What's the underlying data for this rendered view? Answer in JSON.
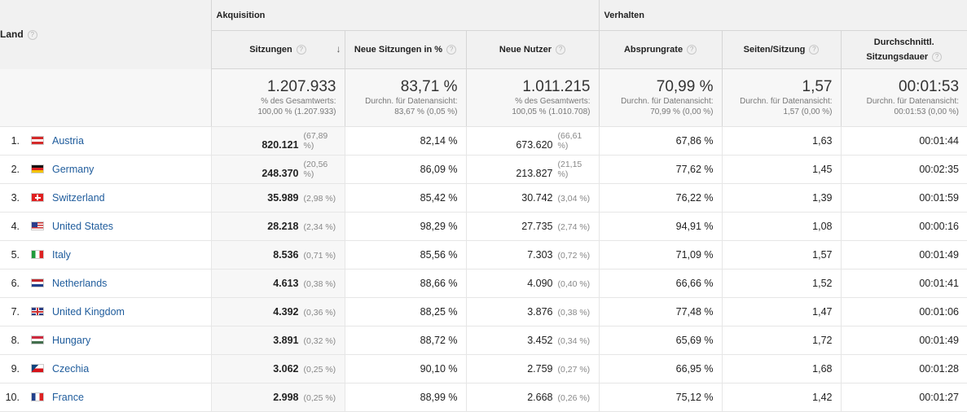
{
  "header": {
    "land": "Land",
    "group_acq": "Akquisition",
    "group_beh": "Verhalten",
    "cols": {
      "sitzungen": "Sitzungen",
      "neue_sitzungen": "Neue Sitzungen in %",
      "neue_nutzer": "Neue Nutzer",
      "absprungrate": "Absprungrate",
      "seiten": "Seiten/Sitzung",
      "dauer1": "Durchschnittl.",
      "dauer2": "Sitzungsdauer"
    },
    "help": "?",
    "sort_glyph": "↓"
  },
  "totals": {
    "sitzungen": {
      "big": "1.207.933",
      "sub1": "% des Gesamtwerts:",
      "sub2": "100,00 % (1.207.933)"
    },
    "neue_sitzungen": {
      "big": "83,71 %",
      "sub1": "Durchn. für Datenansicht:",
      "sub2": "83,67 % (0,05 %)"
    },
    "neue_nutzer": {
      "big": "1.011.215",
      "sub1": "% des Gesamtwerts:",
      "sub2": "100,05 % (1.010.708)"
    },
    "absprungrate": {
      "big": "70,99 %",
      "sub1": "Durchn. für Datenansicht:",
      "sub2": "70,99 % (0,00 %)"
    },
    "seiten": {
      "big": "1,57",
      "sub1": "Durchn. für Datenansicht:",
      "sub2": "1,57 (0,00 %)"
    },
    "dauer": {
      "big": "00:01:53",
      "sub1": "Durchn. für Datenansicht:",
      "sub2": "00:01:53 (0,00 %)"
    }
  },
  "rows": [
    {
      "n": "1.",
      "country": "Austria",
      "flag": "at",
      "sitz": "820.121",
      "sitz_pct": "(67,89 %)",
      "neu": "82,14 %",
      "nutzer": "673.620",
      "nutzer_pct": "(66,61 %)",
      "abs": "67,86 %",
      "seiten": "1,63",
      "dauer": "00:01:44"
    },
    {
      "n": "2.",
      "country": "Germany",
      "flag": "de",
      "sitz": "248.370",
      "sitz_pct": "(20,56 %)",
      "neu": "86,09 %",
      "nutzer": "213.827",
      "nutzer_pct": "(21,15 %)",
      "abs": "77,62 %",
      "seiten": "1,45",
      "dauer": "00:02:35"
    },
    {
      "n": "3.",
      "country": "Switzerland",
      "flag": "ch",
      "sitz": "35.989",
      "sitz_pct": "(2,98 %)",
      "neu": "85,42 %",
      "nutzer": "30.742",
      "nutzer_pct": "(3,04 %)",
      "abs": "76,22 %",
      "seiten": "1,39",
      "dauer": "00:01:59"
    },
    {
      "n": "4.",
      "country": "United States",
      "flag": "us",
      "sitz": "28.218",
      "sitz_pct": "(2,34 %)",
      "neu": "98,29 %",
      "nutzer": "27.735",
      "nutzer_pct": "(2,74 %)",
      "abs": "94,91 %",
      "seiten": "1,08",
      "dauer": "00:00:16"
    },
    {
      "n": "5.",
      "country": "Italy",
      "flag": "it",
      "sitz": "8.536",
      "sitz_pct": "(0,71 %)",
      "neu": "85,56 %",
      "nutzer": "7.303",
      "nutzer_pct": "(0,72 %)",
      "abs": "71,09 %",
      "seiten": "1,57",
      "dauer": "00:01:49"
    },
    {
      "n": "6.",
      "country": "Netherlands",
      "flag": "nl",
      "sitz": "4.613",
      "sitz_pct": "(0,38 %)",
      "neu": "88,66 %",
      "nutzer": "4.090",
      "nutzer_pct": "(0,40 %)",
      "abs": "66,66 %",
      "seiten": "1,52",
      "dauer": "00:01:41"
    },
    {
      "n": "7.",
      "country": "United Kingdom",
      "flag": "gb",
      "sitz": "4.392",
      "sitz_pct": "(0,36 %)",
      "neu": "88,25 %",
      "nutzer": "3.876",
      "nutzer_pct": "(0,38 %)",
      "abs": "77,48 %",
      "seiten": "1,47",
      "dauer": "00:01:06"
    },
    {
      "n": "8.",
      "country": "Hungary",
      "flag": "hu",
      "sitz": "3.891",
      "sitz_pct": "(0,32 %)",
      "neu": "88,72 %",
      "nutzer": "3.452",
      "nutzer_pct": "(0,34 %)",
      "abs": "65,69 %",
      "seiten": "1,72",
      "dauer": "00:01:49"
    },
    {
      "n": "9.",
      "country": "Czechia",
      "flag": "cz",
      "sitz": "3.062",
      "sitz_pct": "(0,25 %)",
      "neu": "90,10 %",
      "nutzer": "2.759",
      "nutzer_pct": "(0,27 %)",
      "abs": "66,95 %",
      "seiten": "1,68",
      "dauer": "00:01:28"
    },
    {
      "n": "10.",
      "country": "France",
      "flag": "fr",
      "sitz": "2.998",
      "sitz_pct": "(0,25 %)",
      "neu": "88,99 %",
      "nutzer": "2.668",
      "nutzer_pct": "(0,26 %)",
      "abs": "75,12 %",
      "seiten": "1,42",
      "dauer": "00:01:27"
    }
  ],
  "colors": {
    "link": "#1f5c9c",
    "header_bg": "#f1f1f1"
  }
}
